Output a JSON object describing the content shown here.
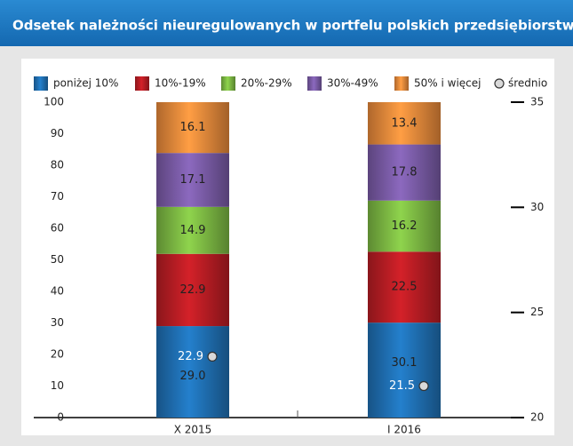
{
  "chart_data": {
    "type": "bar",
    "stacked": true,
    "title": "Odsetek należności nieuregulowanych w portfelu polskich przedsiębiorstw",
    "categories": [
      "X 2015",
      "I 2016"
    ],
    "series": [
      {
        "name": "poniżej 10%",
        "color": "#1f6fb2",
        "values": [
          29.0,
          30.1
        ],
        "value_labels": [
          "29.0",
          "30.1"
        ]
      },
      {
        "name": "10%-19%",
        "color": "#b81d24",
        "values": [
          22.9,
          22.5
        ],
        "value_labels": [
          "22.9",
          "22.5"
        ]
      },
      {
        "name": "20%-29%",
        "color": "#7cb843",
        "values": [
          14.9,
          16.2
        ],
        "value_labels": [
          "14.9",
          "16.2"
        ]
      },
      {
        "name": "30%-49%",
        "color": "#7a5ba6",
        "values": [
          17.1,
          17.8
        ],
        "value_labels": [
          "17.1",
          "17.8"
        ]
      },
      {
        "name": "50% i więcej",
        "color": "#e9893b",
        "values": [
          16.1,
          13.4
        ],
        "value_labels": [
          "16.1",
          "13.4"
        ]
      },
      {
        "name": "średnio",
        "type": "marker",
        "axis": "y2",
        "color": "#d9d9d9",
        "values": [
          22.9,
          21.5
        ],
        "value_labels": [
          "22.9",
          "21.5"
        ]
      }
    ],
    "ylim": [
      0,
      100
    ],
    "yticks": [
      0,
      10,
      20,
      30,
      40,
      50,
      60,
      70,
      80,
      90,
      100
    ],
    "y2lim": [
      20,
      35
    ],
    "y2ticks": [
      20,
      25,
      30,
      35
    ],
    "legend": "top"
  }
}
